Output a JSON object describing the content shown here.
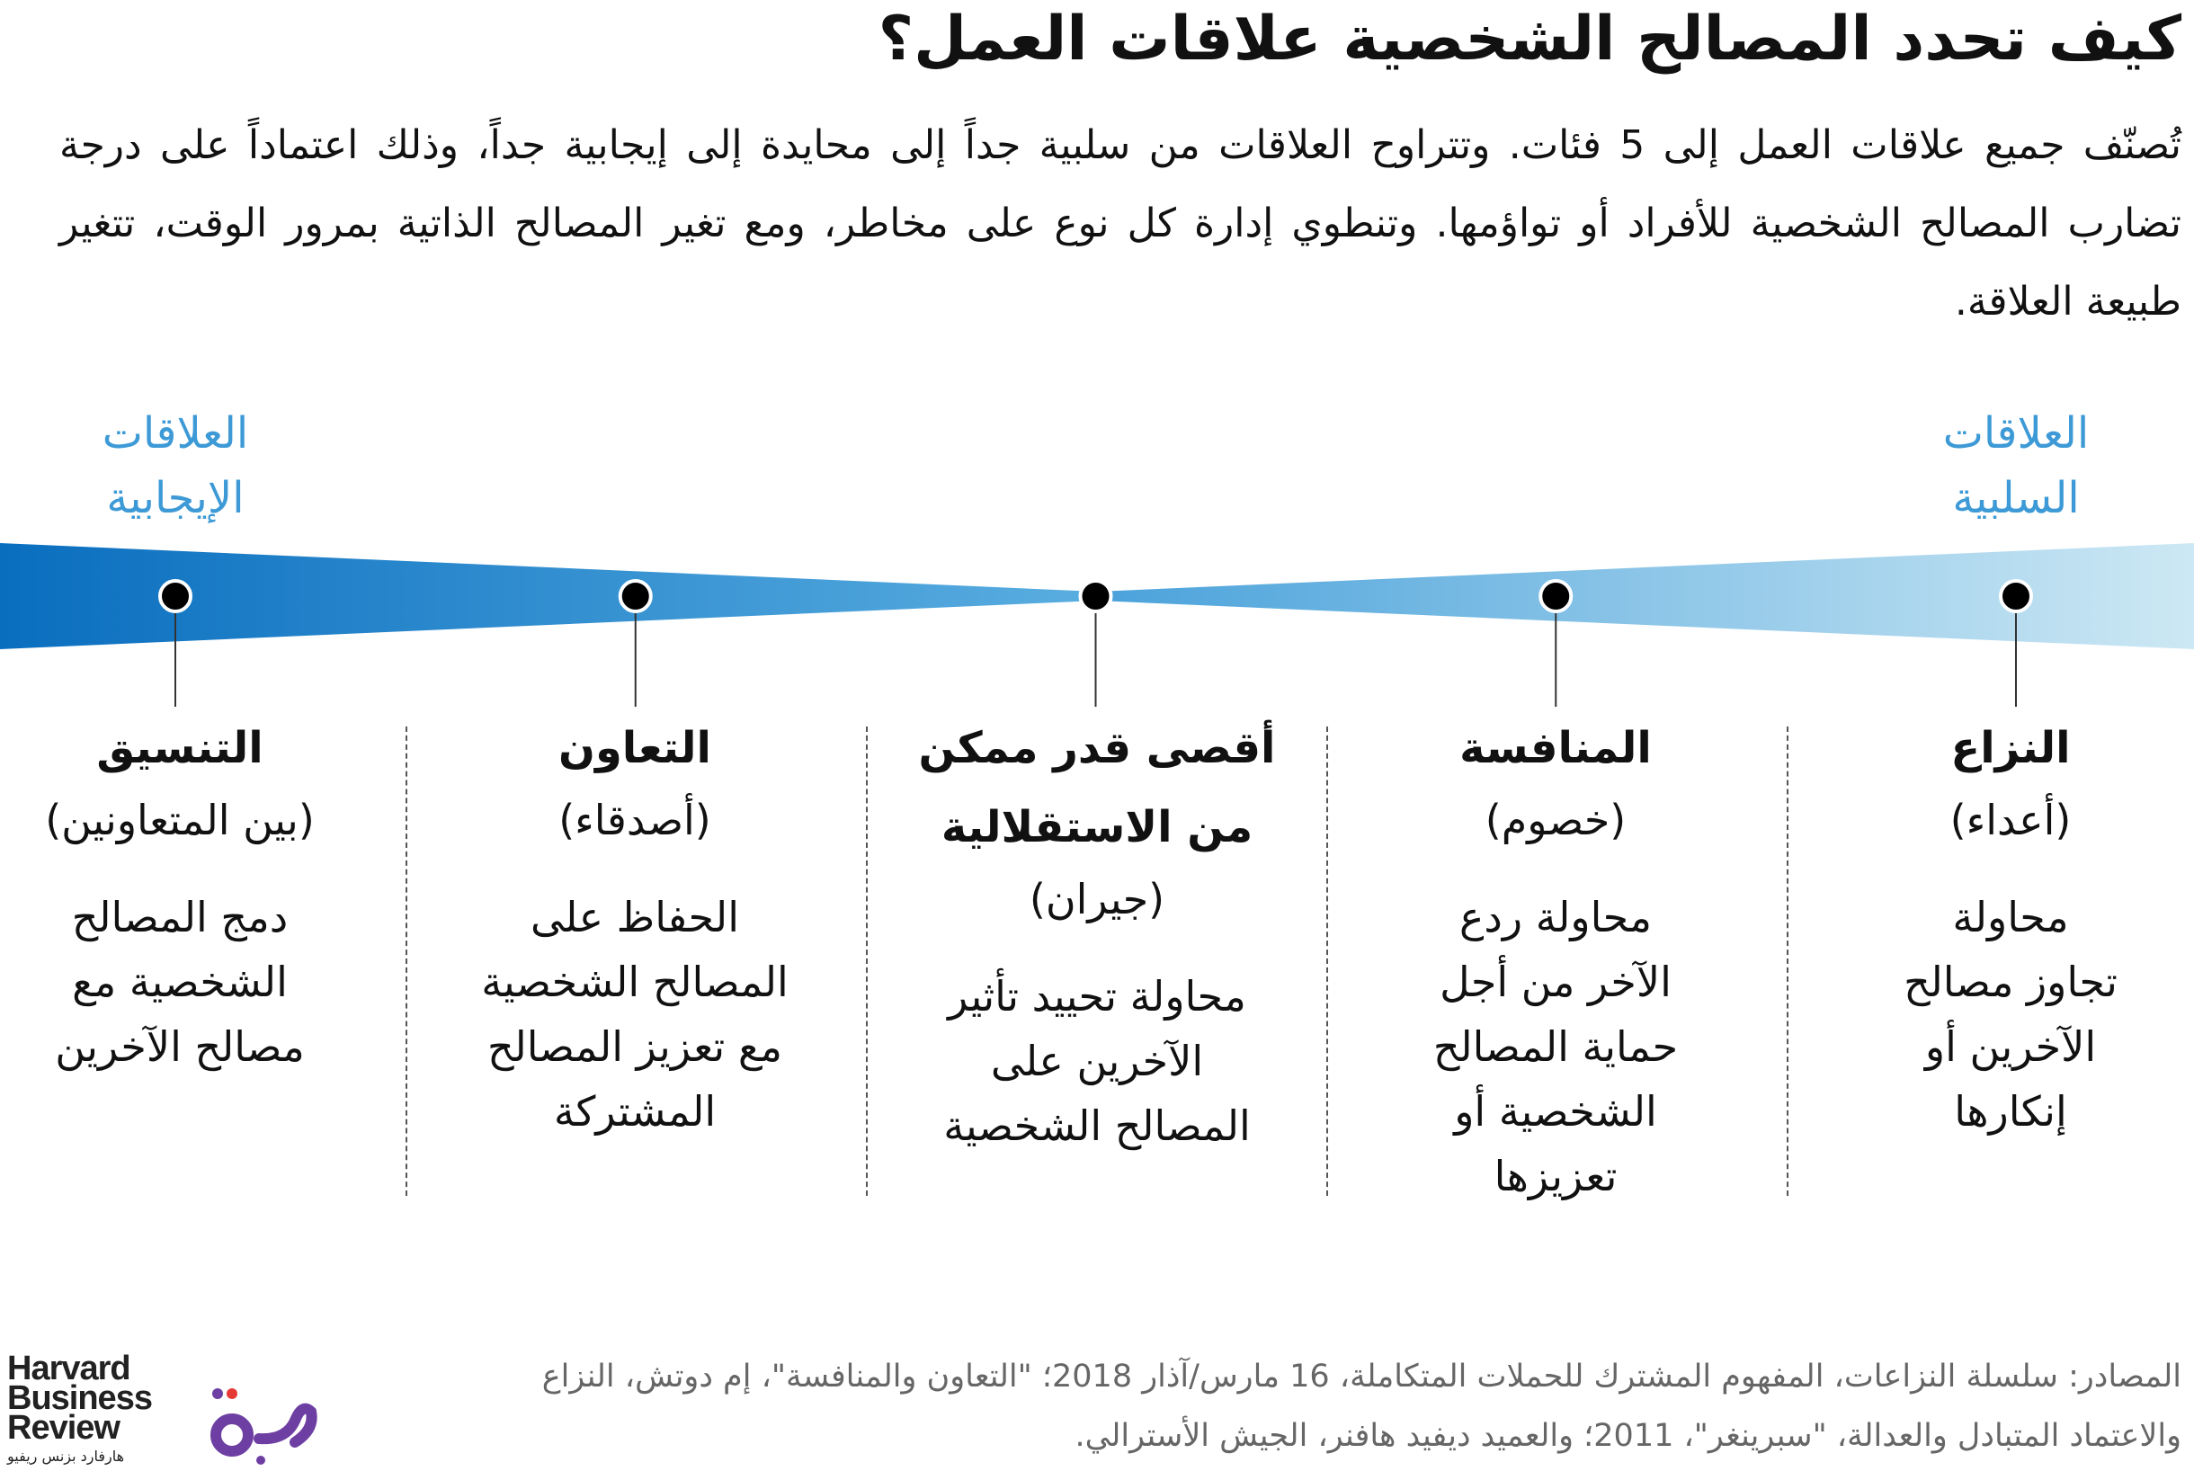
{
  "title": "كيف تحدد المصالح الشخصية علاقات العمل؟",
  "intro": "تُصنّف جميع علاقات العمل إلى 5 فئات. وتتراوح العلاقات من سلبية جداً إلى محايدة إلى إيجابية جداً، وذلك اعتماداً على درجة تضارب المصالح الشخصية للأفراد أو تواؤمها. وتنطوي إدارة كل نوع على مخاطر، ومع تغير المصالح الذاتية بمرور الوقت، تتغير طبيعة العلاقة.",
  "scale": {
    "positive_label": [
      "العلاقات",
      "الإيجابية"
    ],
    "negative_label": [
      "العلاقات",
      "السلبية"
    ],
    "colors": {
      "dark": "#0a6ebf",
      "mid": "#5aaee0",
      "light": "#cde8f4",
      "label": "#3d9ad6"
    }
  },
  "columns": [
    {
      "heading": [
        "التنسيق"
      ],
      "relation": "(بين المتعاونين)",
      "description": [
        "دمج المصالح",
        "الشخصية مع",
        "مصالح الآخرين"
      ]
    },
    {
      "heading": [
        "التعاون"
      ],
      "relation": "(أصدقاء)",
      "description": [
        "الحفاظ على",
        "المصالح الشخصية",
        "مع تعزيز المصالح",
        "المشتركة"
      ]
    },
    {
      "heading": [
        "أقصى قدر ممكن",
        "من الاستقلالية"
      ],
      "relation": "(جيران)",
      "description": [
        "محاولة تحييد تأثير",
        "الآخرين على",
        "المصالح الشخصية"
      ]
    },
    {
      "heading": [
        "المنافسة"
      ],
      "relation": "(خصوم)",
      "description": [
        "محاولة ردع",
        "الآخر من أجل",
        "حماية المصالح",
        "الشخصية أو",
        "تعزيزها"
      ]
    },
    {
      "heading": [
        "النزاع"
      ],
      "relation": "(أعداء)",
      "description": [
        "محاولة",
        "تجاوز مصالح",
        "الآخرين أو",
        "إنكارها"
      ]
    }
  ],
  "sources": [
    "المصادر: سلسلة النزاعات، المفهوم المشترك للحملات المتكاملة، 16 مارس/آذار 2018؛ \"التعاون والمنافسة\"، إم دوتش، النزاع",
    "والاعتماد المتبادل والعدالة، \"سبرينغر\"، 2011؛ والعميد ديفيد هافنر، الجيش الأسترالي."
  ],
  "logos": {
    "hbr": [
      "Harvard",
      "Business",
      "Review"
    ],
    "hbr_arabic": "هارفارد بزنس ريفيو",
    "majarra": "مجرة",
    "majarra_color": "#6e3fa3"
  }
}
